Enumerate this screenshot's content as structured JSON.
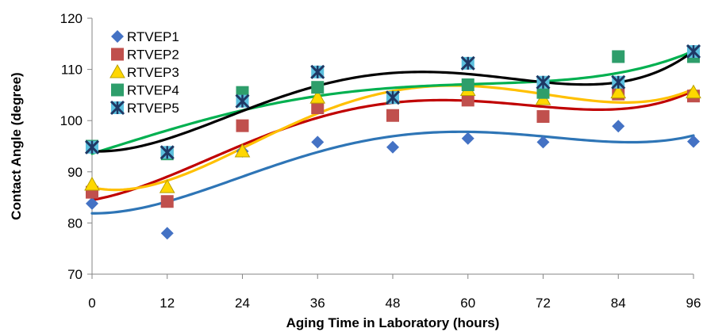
{
  "chart_data": {
    "type": "scatter",
    "title": "",
    "xlabel": "Aging Time in Laboratory (hours)",
    "ylabel": "Contact Angle (degree)",
    "xlim": [
      0,
      96
    ],
    "ylim": [
      70,
      120
    ],
    "x_ticks": [
      0,
      12,
      24,
      36,
      48,
      60,
      72,
      84,
      96
    ],
    "y_ticks": [
      70,
      80,
      90,
      100,
      110,
      120
    ],
    "grid": false,
    "legend_position": "top-left",
    "trendlines": "polynomial",
    "x": [
      0,
      12,
      24,
      36,
      48,
      60,
      72,
      84,
      96
    ],
    "series": [
      {
        "name": "RTVEP1",
        "marker": "diamond",
        "color": "#4472C4",
        "trend_color": "#2E75B6",
        "values": [
          83.8,
          78,
          94,
          95.8,
          94.8,
          96.5,
          95.8,
          98.9,
          95.9
        ]
      },
      {
        "name": "RTVEP2",
        "marker": "square",
        "color": "#C0504D",
        "trend_color": "#C00000",
        "values": [
          86,
          84.2,
          99,
          102.5,
          101,
          104,
          100.8,
          105.2,
          104.8
        ]
      },
      {
        "name": "RTVEP3",
        "marker": "triangle",
        "color": "#FFD700",
        "trend_color": "#FFC000",
        "values": [
          87.5,
          87,
          94,
          104.5,
          104.5,
          106,
          104.2,
          105.5,
          105.5
        ]
      },
      {
        "name": "RTVEP4",
        "marker": "square",
        "color": "#2E9E6B",
        "trend_color": "#00B050",
        "values": [
          95,
          93.5,
          105.5,
          106.5,
          104.5,
          107,
          105.5,
          112.5,
          112.5
        ]
      },
      {
        "name": "RTVEP5",
        "marker": "star",
        "color": "#1F3864",
        "trend_color": "#000000",
        "values": [
          94.8,
          93.8,
          103.8,
          109.5,
          104.5,
          111.2,
          107.5,
          107.5,
          113.5
        ]
      }
    ]
  }
}
